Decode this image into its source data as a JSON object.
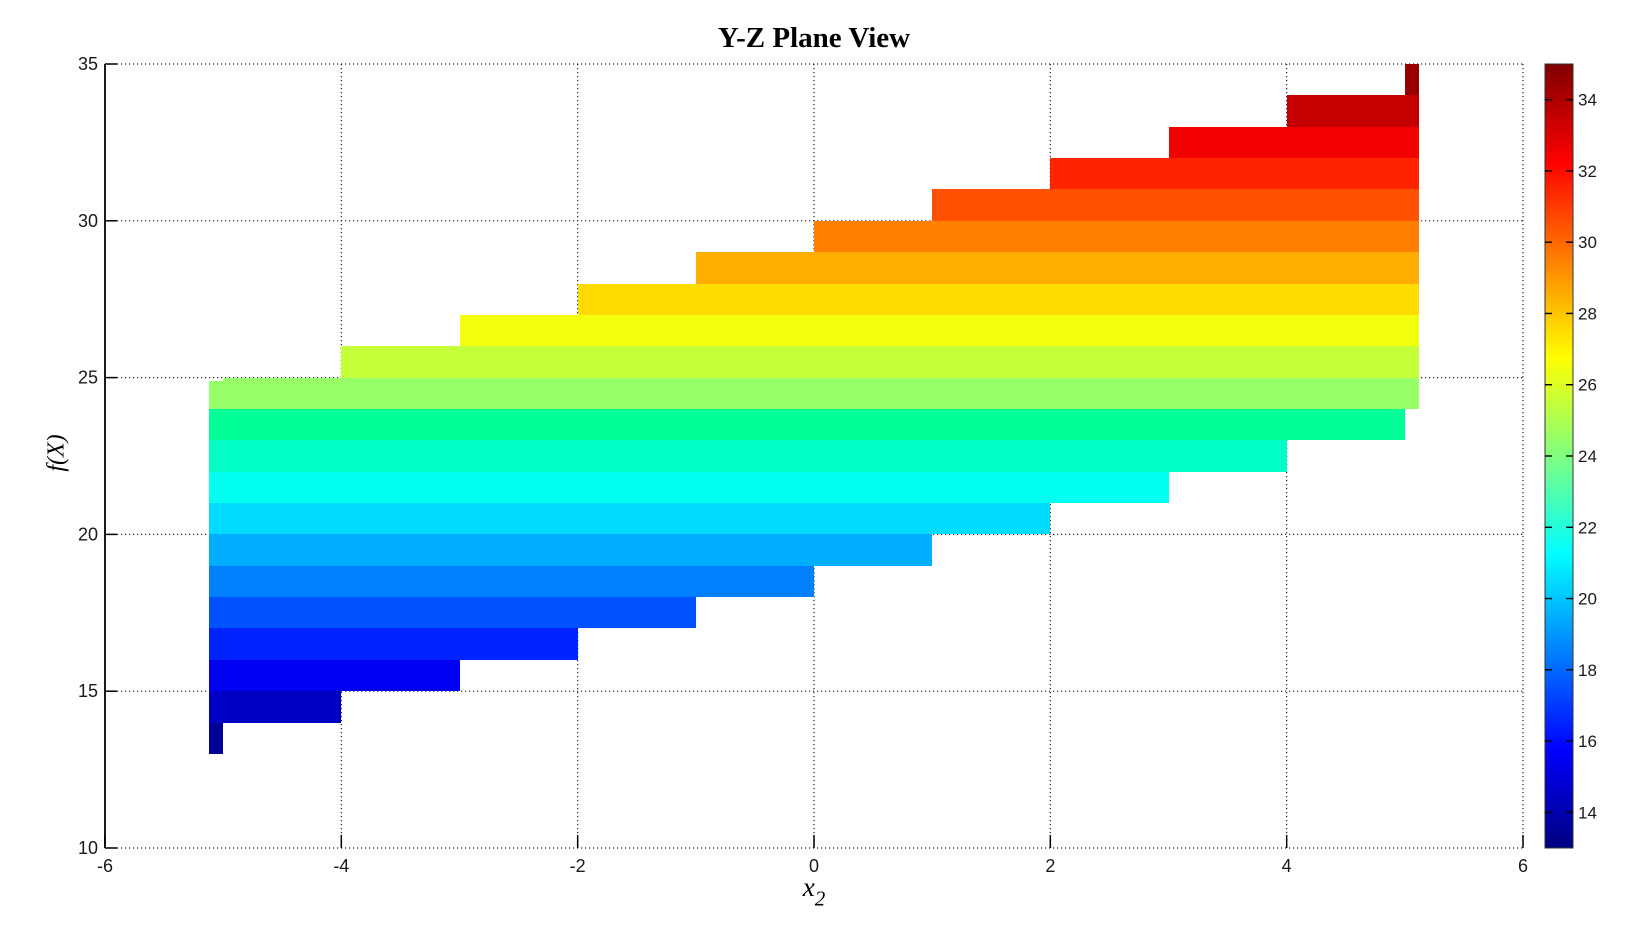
{
  "chart_data": {
    "type": "area",
    "subtype": "stepped-filled-projection",
    "title": "Y-Z Plane View",
    "xlabel_base": "x",
    "xlabel_sub": "2",
    "ylabel": "f(X)",
    "xlim": [
      -6,
      6
    ],
    "ylim": [
      10,
      35
    ],
    "xticks": [
      -6,
      -4,
      -2,
      0,
      2,
      4,
      6
    ],
    "yticks": [
      10,
      15,
      20,
      25,
      30,
      35
    ],
    "grid": true,
    "x_range_of_data": [
      -5.12,
      5.12
    ],
    "f_range_of_data": [
      13,
      35
    ],
    "columns": [
      {
        "x0": -5.12,
        "x1": -5,
        "fmin": 13,
        "fmax": 24.88
      },
      {
        "x0": -5,
        "x1": -4,
        "fmin": 14,
        "fmax": 25
      },
      {
        "x0": -4,
        "x1": -3,
        "fmin": 15,
        "fmax": 26
      },
      {
        "x0": -3,
        "x1": -2,
        "fmin": 16,
        "fmax": 27
      },
      {
        "x0": -2,
        "x1": -1,
        "fmin": 17,
        "fmax": 28
      },
      {
        "x0": -1,
        "x1": 0,
        "fmin": 18,
        "fmax": 29
      },
      {
        "x0": 0,
        "x1": 1,
        "fmin": 19,
        "fmax": 30
      },
      {
        "x0": 1,
        "x1": 2,
        "fmin": 20,
        "fmax": 31
      },
      {
        "x0": 2,
        "x1": 3,
        "fmin": 21,
        "fmax": 32
      },
      {
        "x0": 3,
        "x1": 4,
        "fmin": 22,
        "fmax": 33
      },
      {
        "x0": 4,
        "x1": 5,
        "fmin": 23,
        "fmax": 34
      },
      {
        "x0": 5,
        "x1": 5.12,
        "fmin": 24,
        "fmax": 35
      }
    ],
    "bands": [
      {
        "from": 13,
        "to": 14,
        "color": "#000097"
      },
      {
        "from": 14,
        "to": 15,
        "color": "#0000C5"
      },
      {
        "from": 15,
        "to": 16,
        "color": "#0000F3"
      },
      {
        "from": 16,
        "to": 17,
        "color": "#0023FF"
      },
      {
        "from": 17,
        "to": 18,
        "color": "#0051FF"
      },
      {
        "from": 18,
        "to": 19,
        "color": "#0080FF"
      },
      {
        "from": 19,
        "to": 20,
        "color": "#00AEFF"
      },
      {
        "from": 20,
        "to": 21,
        "color": "#00DCFF"
      },
      {
        "from": 21,
        "to": 22,
        "color": "#00FFF3"
      },
      {
        "from": 22,
        "to": 23,
        "color": "#00FFC5"
      },
      {
        "from": 23,
        "to": 24,
        "color": "#00FF97"
      },
      {
        "from": 24,
        "to": 25,
        "color": "#97FF68"
      },
      {
        "from": 25,
        "to": 26,
        "color": "#C5FF3A"
      },
      {
        "from": 26,
        "to": 27,
        "color": "#F3FF0C"
      },
      {
        "from": 27,
        "to": 28,
        "color": "#FFDC00"
      },
      {
        "from": 28,
        "to": 29,
        "color": "#FFAE00"
      },
      {
        "from": 29,
        "to": 30,
        "color": "#FF8000"
      },
      {
        "from": 30,
        "to": 31,
        "color": "#FF5100"
      },
      {
        "from": 31,
        "to": 32,
        "color": "#FF2300"
      },
      {
        "from": 32,
        "to": 33,
        "color": "#F30000"
      },
      {
        "from": 33,
        "to": 34,
        "color": "#C50000"
      },
      {
        "from": 34,
        "to": 35,
        "color": "#970000"
      }
    ],
    "colorbar": {
      "min": 13,
      "max": 35,
      "ticks": [
        14,
        16,
        18,
        20,
        22,
        24,
        26,
        28,
        30,
        32,
        34
      ],
      "gradient_stops": [
        {
          "offset": 0,
          "color": "#000080"
        },
        {
          "offset": 0.125,
          "color": "#0000FF"
        },
        {
          "offset": 0.375,
          "color": "#00FFFF"
        },
        {
          "offset": 0.625,
          "color": "#FFFF00"
        },
        {
          "offset": 0.875,
          "color": "#FF0000"
        },
        {
          "offset": 1,
          "color": "#800000"
        }
      ]
    }
  }
}
